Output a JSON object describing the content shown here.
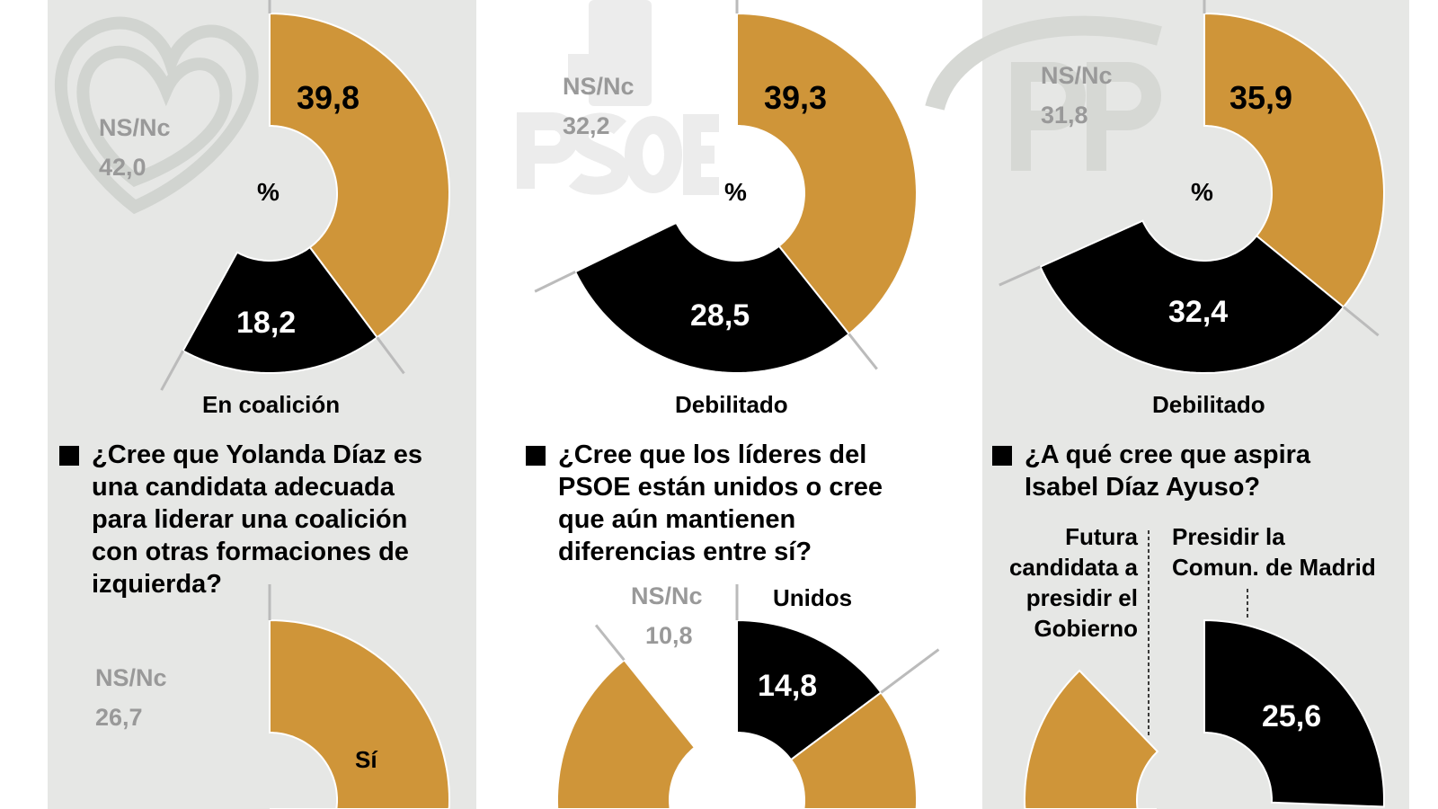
{
  "colors": {
    "accent": "#cf9539",
    "dark": "#000000",
    "nsnc": "#999999",
    "panel": "#e6e7e5",
    "leader": "#bbbbbb"
  },
  "watermarks": {
    "panel1": "heart-logo",
    "panel2": "PSOE",
    "panel3": "PP"
  },
  "chart_data": [
    {
      "type": "pie",
      "subtype": "donut",
      "unit": "%",
      "center_label": "%",
      "label": "En coalición",
      "slices": [
        {
          "name": "",
          "value": 39.8,
          "label": "39,8",
          "color": "#cf9539"
        },
        {
          "name": "",
          "value": 18.2,
          "label": "18,2",
          "color": "#000000"
        },
        {
          "name": "NS/Nc",
          "value": 42.0,
          "label": "42,0",
          "color": "none"
        }
      ]
    },
    {
      "type": "pie",
      "subtype": "donut",
      "unit": "%",
      "center_label": "%",
      "label": "Debilitado",
      "slices": [
        {
          "name": "",
          "value": 39.3,
          "label": "39,3",
          "color": "#cf9539"
        },
        {
          "name": "",
          "value": 28.5,
          "label": "28,5",
          "color": "#000000"
        },
        {
          "name": "NS/Nc",
          "value": 32.2,
          "label": "32,2",
          "color": "none"
        }
      ]
    },
    {
      "type": "pie",
      "subtype": "donut",
      "unit": "%",
      "center_label": "%",
      "label": "Debilitado",
      "slices": [
        {
          "name": "",
          "value": 35.9,
          "label": "35,9",
          "color": "#cf9539"
        },
        {
          "name": "",
          "value": 32.4,
          "label": "32,4",
          "color": "#000000"
        },
        {
          "name": "NS/Nc",
          "value": 31.8,
          "label": "31,8",
          "color": "none"
        }
      ]
    },
    {
      "type": "pie",
      "subtype": "donut",
      "unit": "%",
      "center_label": "%",
      "question": "¿Cree que Yolanda Díaz es una candidata adecuada para liderar una coalición con otras formaciones de izquierda?",
      "question_lines": [
        "¿Cree que Yolanda Díaz es",
        "una candidata adecuada",
        "para liderar una coalición",
        "con otras formaciones de",
        "izquierda?"
      ],
      "slices": [
        {
          "name": "Sí",
          "color": "#cf9539"
        },
        {
          "name": "NS/Nc",
          "value": 26.7,
          "label": "26,7",
          "color": "none"
        }
      ]
    },
    {
      "type": "pie",
      "subtype": "donut",
      "unit": "%",
      "center_label": "%",
      "question": "¿Cree que los líderes del PSOE están unidos o cree que aún mantienen diferencias entre sí?",
      "question_lines": [
        "¿Cree que los líderes del",
        "PSOE están unidos o cree",
        "que aún mantienen",
        "diferencias entre sí?"
      ],
      "slices": [
        {
          "name": "Unidos",
          "value": 14.8,
          "label": "14,8",
          "color": "#000000"
        },
        {
          "name": "",
          "color": "#cf9539"
        },
        {
          "name": "NS/Nc",
          "value": 10.8,
          "label": "10,8",
          "color": "none"
        }
      ]
    },
    {
      "type": "pie",
      "subtype": "donut",
      "unit": "%",
      "center_label": "%",
      "question": "¿A qué cree que aspira Isabel Díaz Ayuso?",
      "question_lines": [
        "¿A qué cree que aspira",
        "Isabel Díaz Ayuso?"
      ],
      "slices": [
        {
          "name": "Presidir la Comun. de Madrid",
          "name_lines": [
            "Presidir la",
            "Comun. de Madrid"
          ],
          "value": 25.6,
          "label": "25,6",
          "color": "#000000"
        },
        {
          "name": "Futura candidata a presidir el Gobierno",
          "name_lines": [
            "Futura",
            "candidata a",
            "presidir el",
            "Gobierno"
          ],
          "color": "#cf9539"
        }
      ]
    }
  ]
}
